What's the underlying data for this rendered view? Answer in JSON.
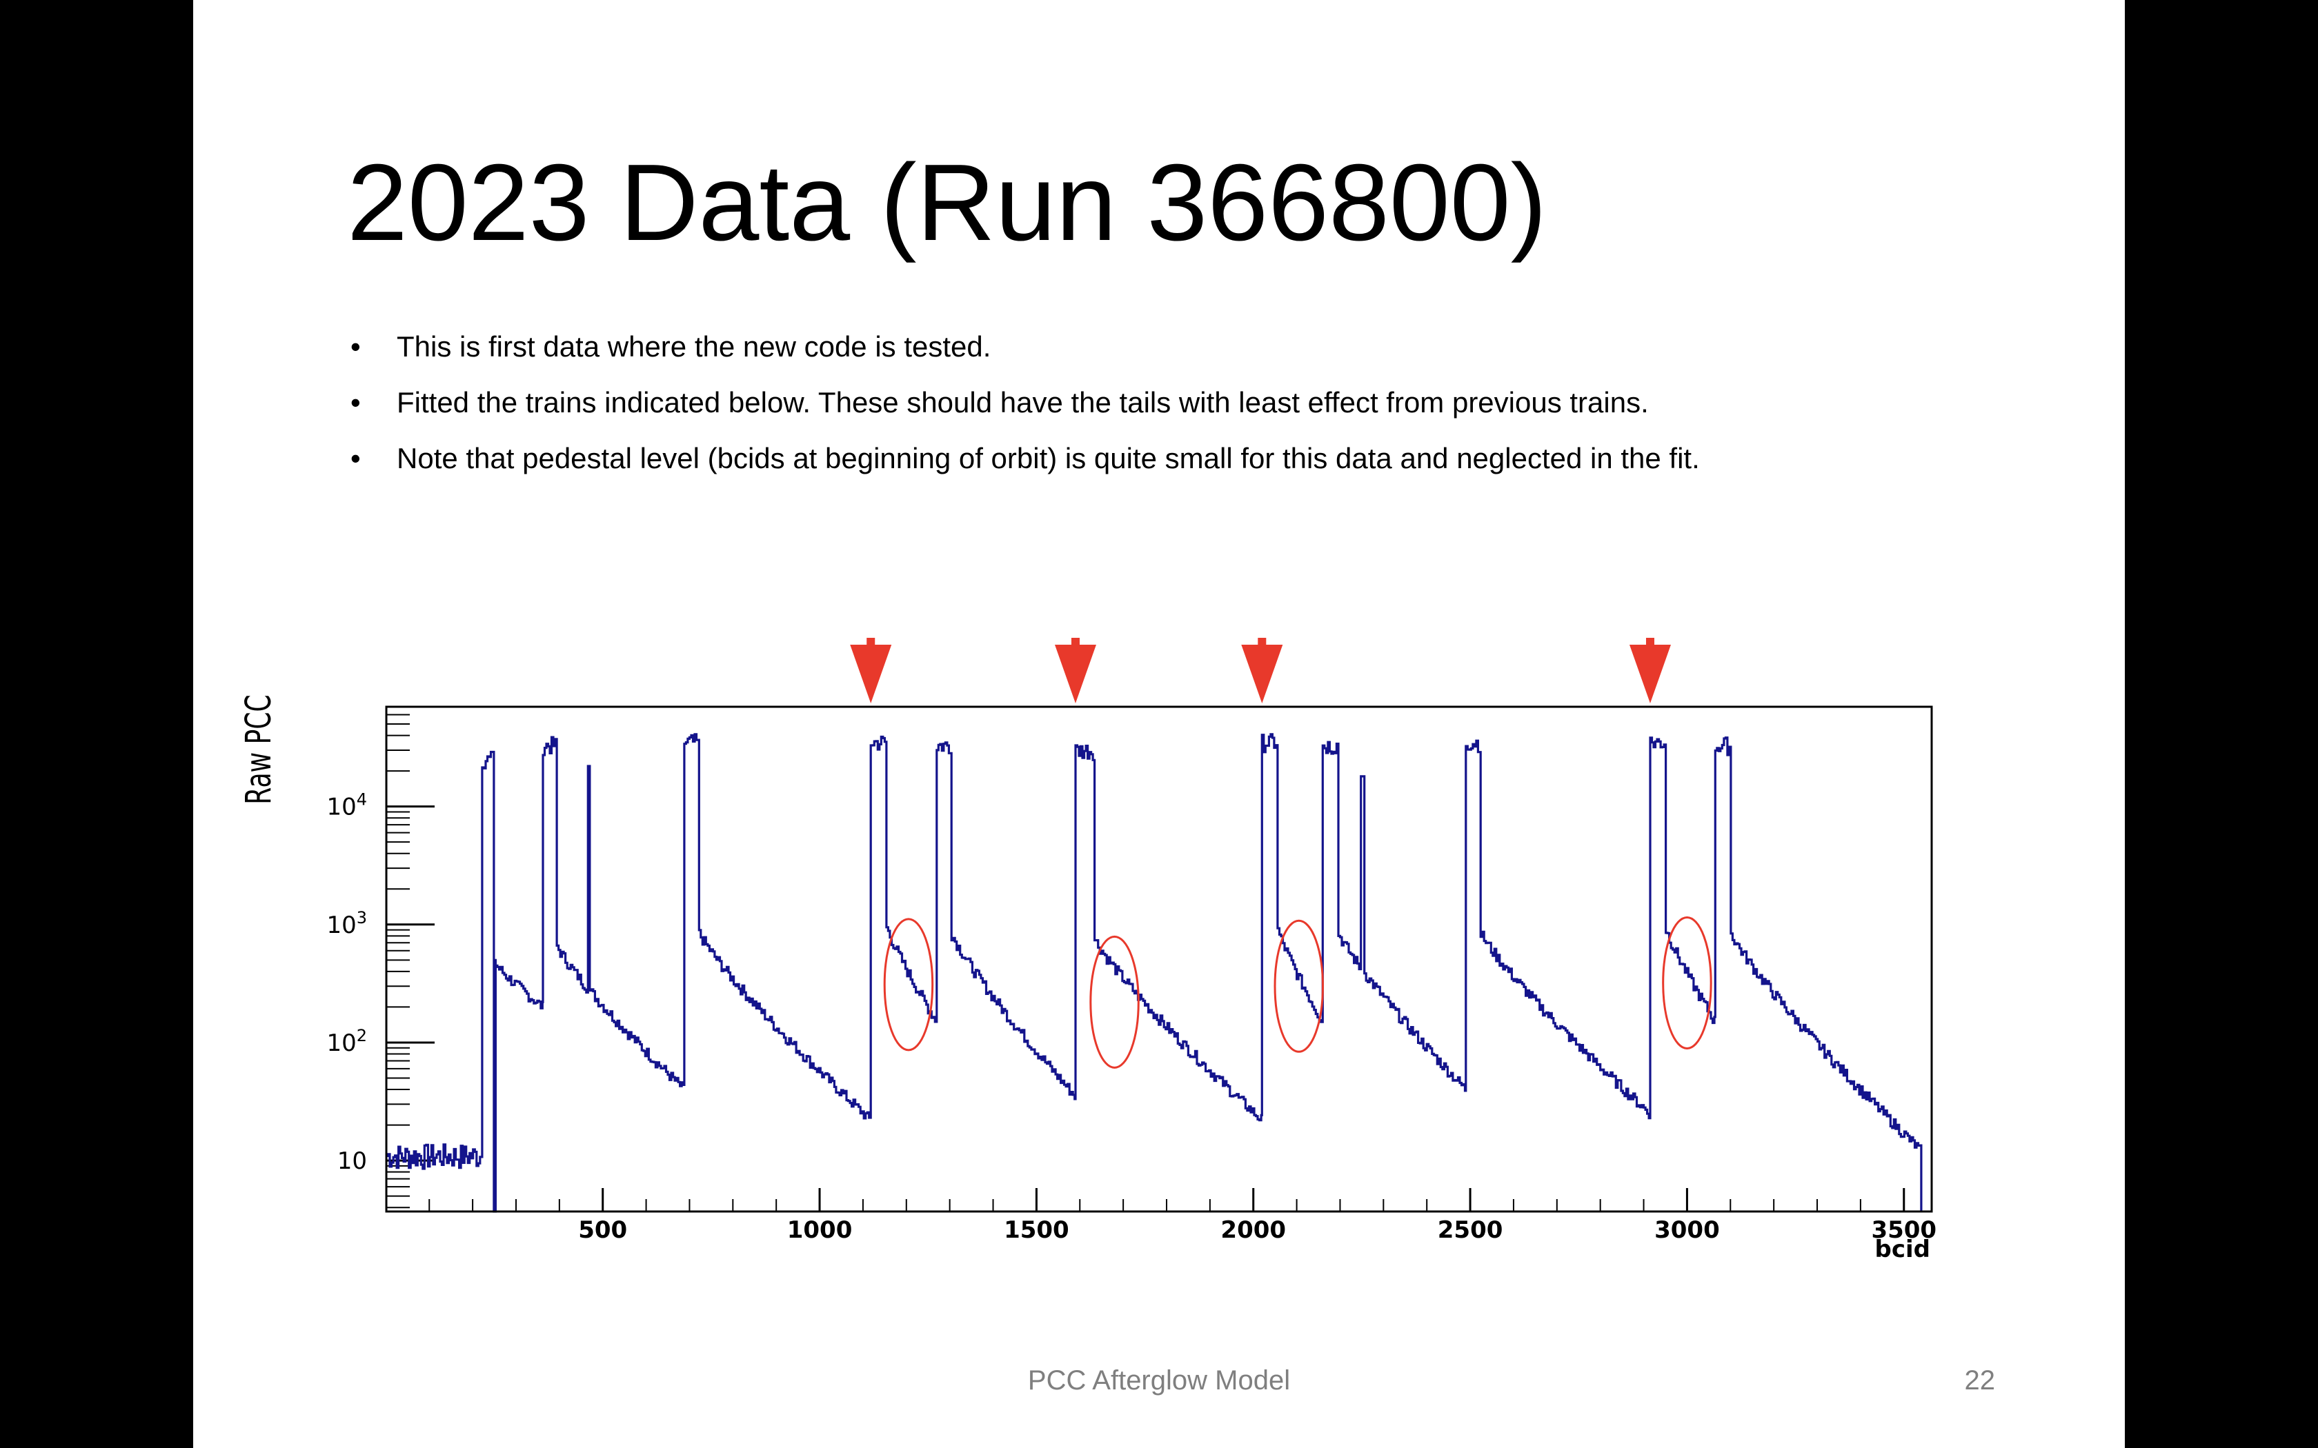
{
  "slide": {
    "title": "2023 Data (Run 366800)",
    "bullet_glyph": "•",
    "bullets": [
      "This is first data where the new code is tested.",
      "Fitted the trains indicated below. These should have the tails with least effect from previous trains.",
      "Note that pedestal level  (bcids at beginning of orbit) is quite small for this data and neglected in the fit."
    ],
    "footer": "PCC Afterglow Model",
    "page_number": "22"
  },
  "colors": {
    "series": "#14148c",
    "markers": "#e8392b",
    "axis": "#000000"
  },
  "chart_data": {
    "type": "line",
    "xlabel": "bcid",
    "ylabel": "Raw PCC",
    "x_scale": "linear",
    "y_scale": "log",
    "xlim": [
      1,
      3564
    ],
    "ylim": [
      3.7,
      70000
    ],
    "grid": false,
    "x_ticks": [
      {
        "value": 500,
        "label": "500"
      },
      {
        "value": 1000,
        "label": "1000"
      },
      {
        "value": 1500,
        "label": "1500"
      },
      {
        "value": 2000,
        "label": "2000"
      },
      {
        "value": 2500,
        "label": "2500"
      },
      {
        "value": 3000,
        "label": "3000"
      },
      {
        "value": 3500,
        "label": "3500"
      }
    ],
    "y_ticks": [
      {
        "value": 10,
        "base": "10",
        "exp": ""
      },
      {
        "value": 100,
        "base": "10",
        "exp": "2"
      },
      {
        "value": 1000,
        "base": "10",
        "exp": "3"
      },
      {
        "value": 10000,
        "base": "10",
        "exp": "4"
      }
    ],
    "pedestal": {
      "x_start": 1,
      "x_end": 220,
      "level": 11
    },
    "trains": [
      {
        "start": 222,
        "end": 245,
        "peak": 25000,
        "tail_start": 500,
        "tail_end": 200,
        "dip": true
      },
      {
        "start": 362,
        "end": 390,
        "peak": 33000,
        "tail_start": 700,
        "tail_end": 40,
        "spike_x": 466,
        "spike_peak": 22000
      },
      {
        "start": 688,
        "end": 718,
        "peak": 35000,
        "tail_start": 900,
        "tail_end": 22
      },
      {
        "start": 1118,
        "end": 1150,
        "peak": 35000,
        "tail_start": 1050,
        "tail_end": 150
      },
      {
        "start": 1270,
        "end": 1300,
        "peak": 33000,
        "tail_start": 900,
        "tail_end": 35
      },
      {
        "start": 1590,
        "end": 1630,
        "peak": 30000,
        "tail_start": 800,
        "tail_end": 22
      },
      {
        "start": 2020,
        "end": 2052,
        "peak": 35000,
        "tail_start": 1000,
        "tail_end": 150
      },
      {
        "start": 2160,
        "end": 2192,
        "peak": 33000,
        "tail_start": 900,
        "tail_end": 40,
        "spike_x": 2250,
        "spike_peak": 18000
      },
      {
        "start": 2490,
        "end": 2520,
        "peak": 35000,
        "tail_start": 900,
        "tail_end": 25
      },
      {
        "start": 2915,
        "end": 2947,
        "peak": 35000,
        "tail_start": 1000,
        "tail_end": 150
      },
      {
        "start": 3065,
        "end": 3097,
        "peak": 33000,
        "tail_start": 900,
        "tail_end": 12
      }
    ],
    "annotations": {
      "arrows_x": [
        1118,
        1590,
        2020,
        2915
      ],
      "circles": [
        {
          "cx": 1205,
          "cy": 310,
          "rx": 85,
          "ry": 0.35
        },
        {
          "cx": 1680,
          "cy": 220,
          "rx": 85,
          "ry": 0.35
        },
        {
          "cx": 2105,
          "cy": 300,
          "rx": 85,
          "ry": 0.35
        },
        {
          "cx": 3000,
          "cy": 320,
          "rx": 85,
          "ry": 0.35
        }
      ]
    }
  }
}
